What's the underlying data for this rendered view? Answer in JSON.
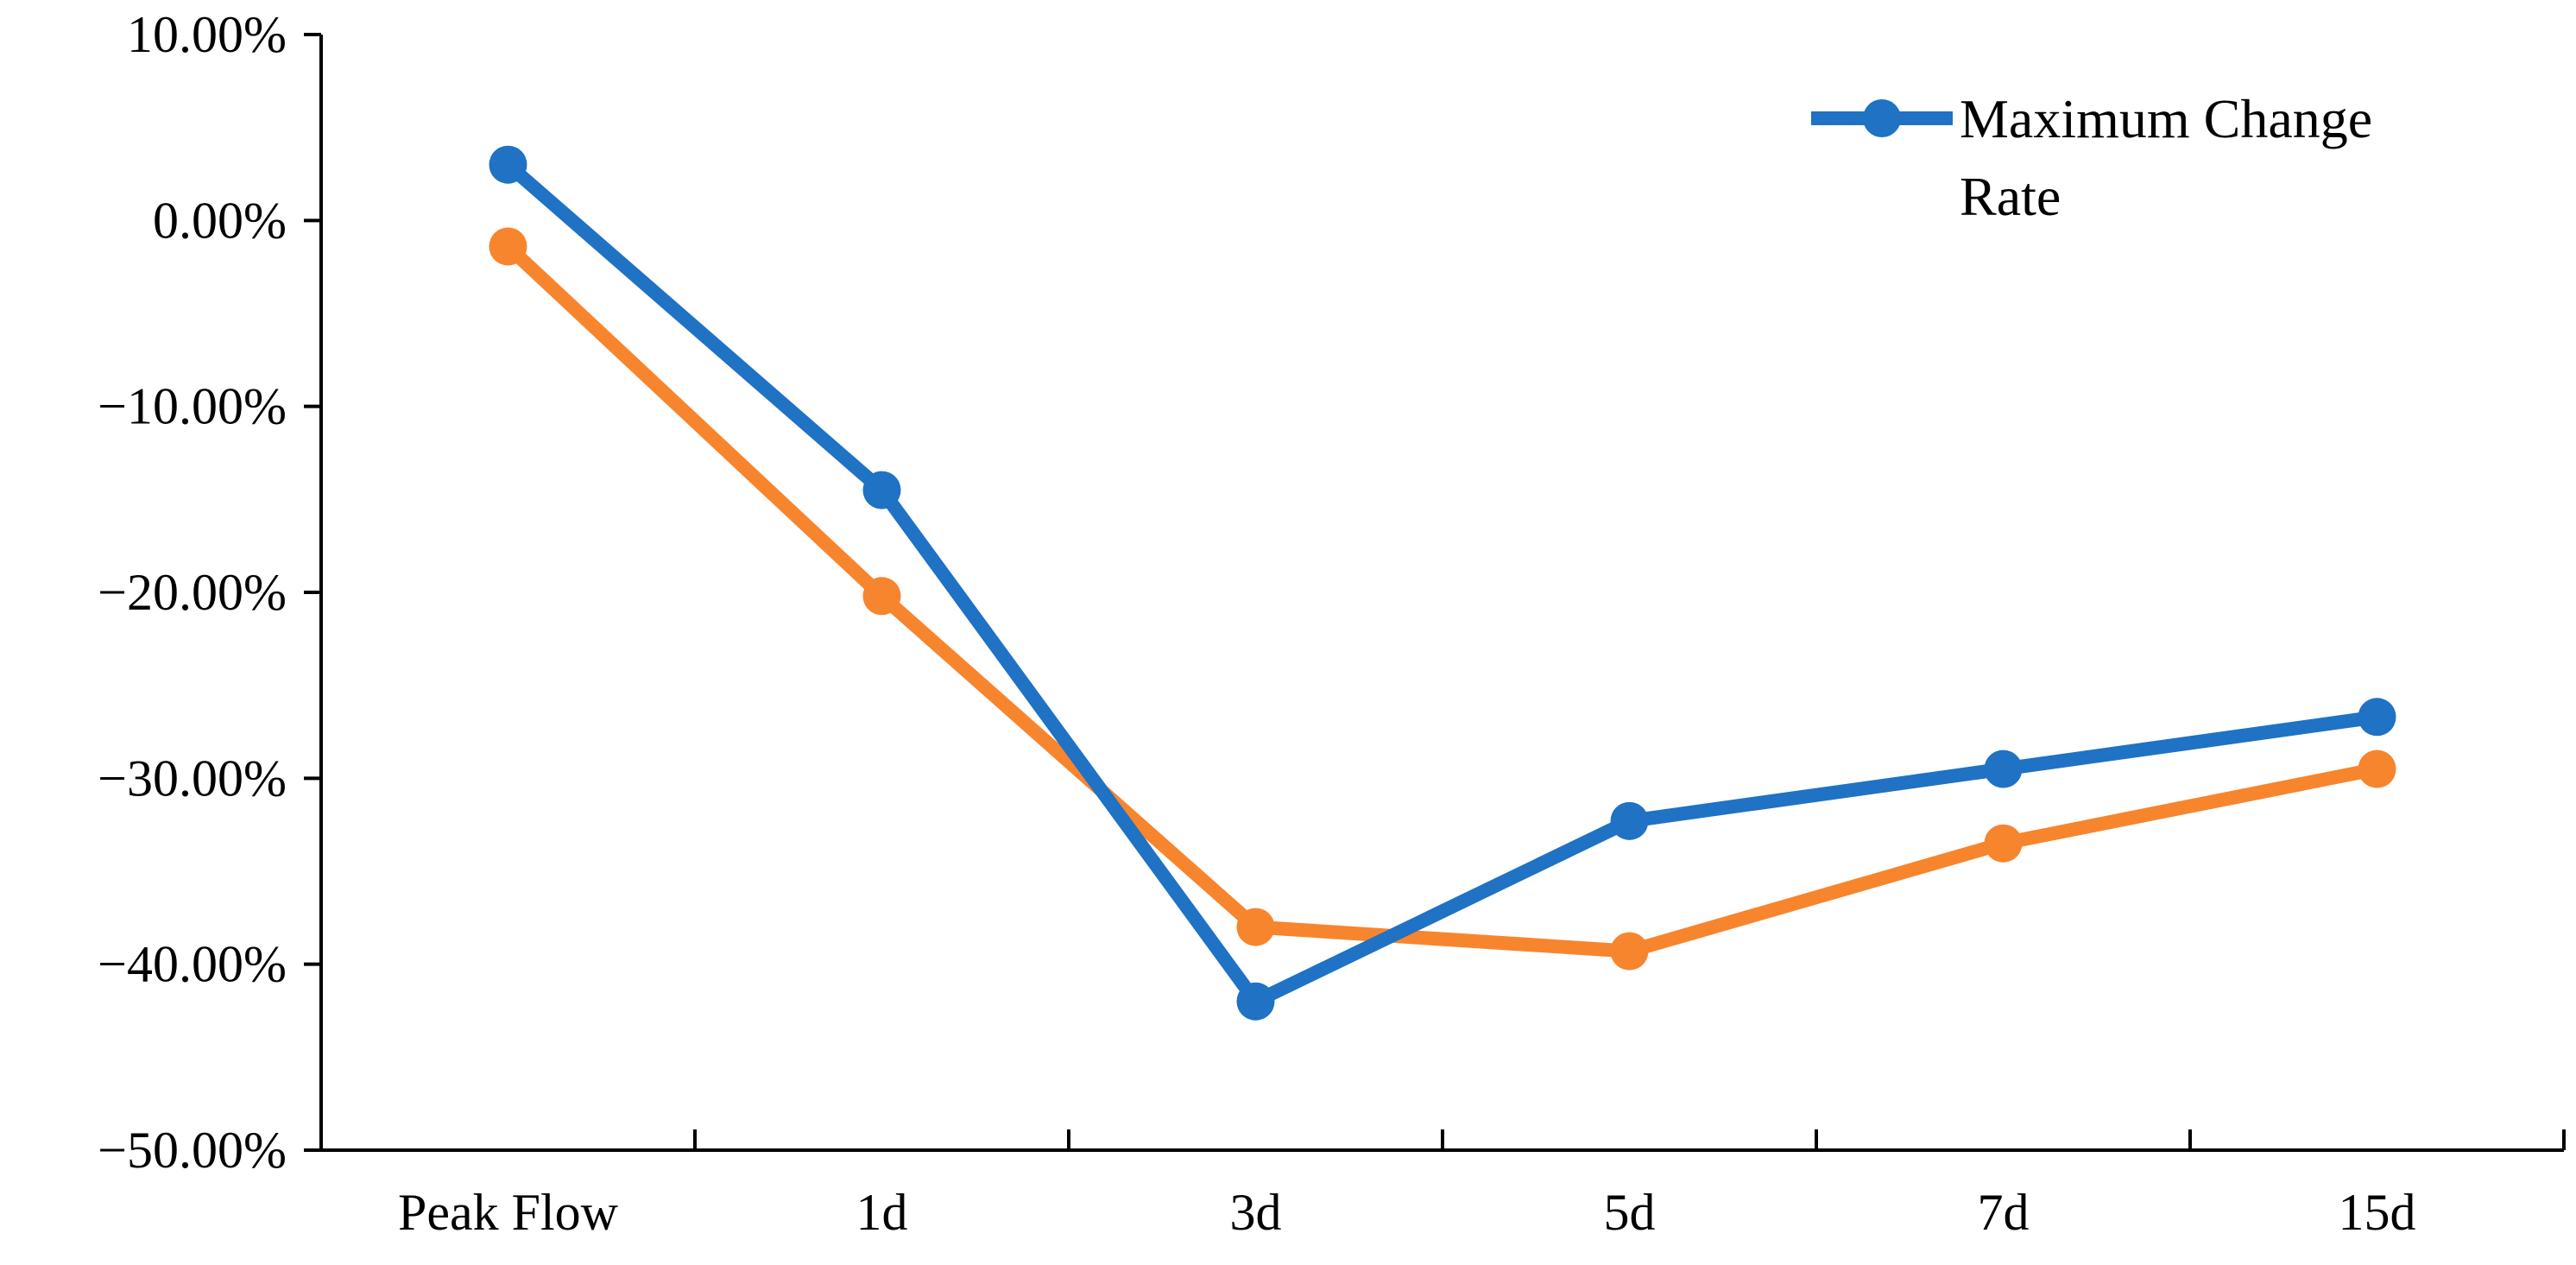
{
  "chart_data": {
    "type": "line",
    "title": "",
    "xlabel": "",
    "ylabel": "",
    "categories": [
      "Peak Flow",
      "1d",
      "3d",
      "5d",
      "7d",
      "15d"
    ],
    "ylim": [
      -50,
      10
    ],
    "y_tick_step": 10,
    "y_tick_labels": [
      "10.00%",
      "0.00%",
      "−10.00%",
      "−20.00%",
      "−30.00%",
      "−40.00%",
      "−50.00%"
    ],
    "grid": false,
    "legend_position": "top-right",
    "series": [
      {
        "name": "Maximum Change Rate",
        "color": "#1f72c4",
        "values": [
          3.0,
          -14.5,
          -42.0,
          -32.3,
          -29.5,
          -26.7
        ]
      },
      {
        "color": "#f7852e",
        "values": [
          -1.4,
          -20.2,
          -38.0,
          -39.3,
          -33.5,
          -29.5
        ]
      }
    ],
    "legend": {
      "lines": [
        "Maximum Change",
        "Rate"
      ]
    }
  }
}
